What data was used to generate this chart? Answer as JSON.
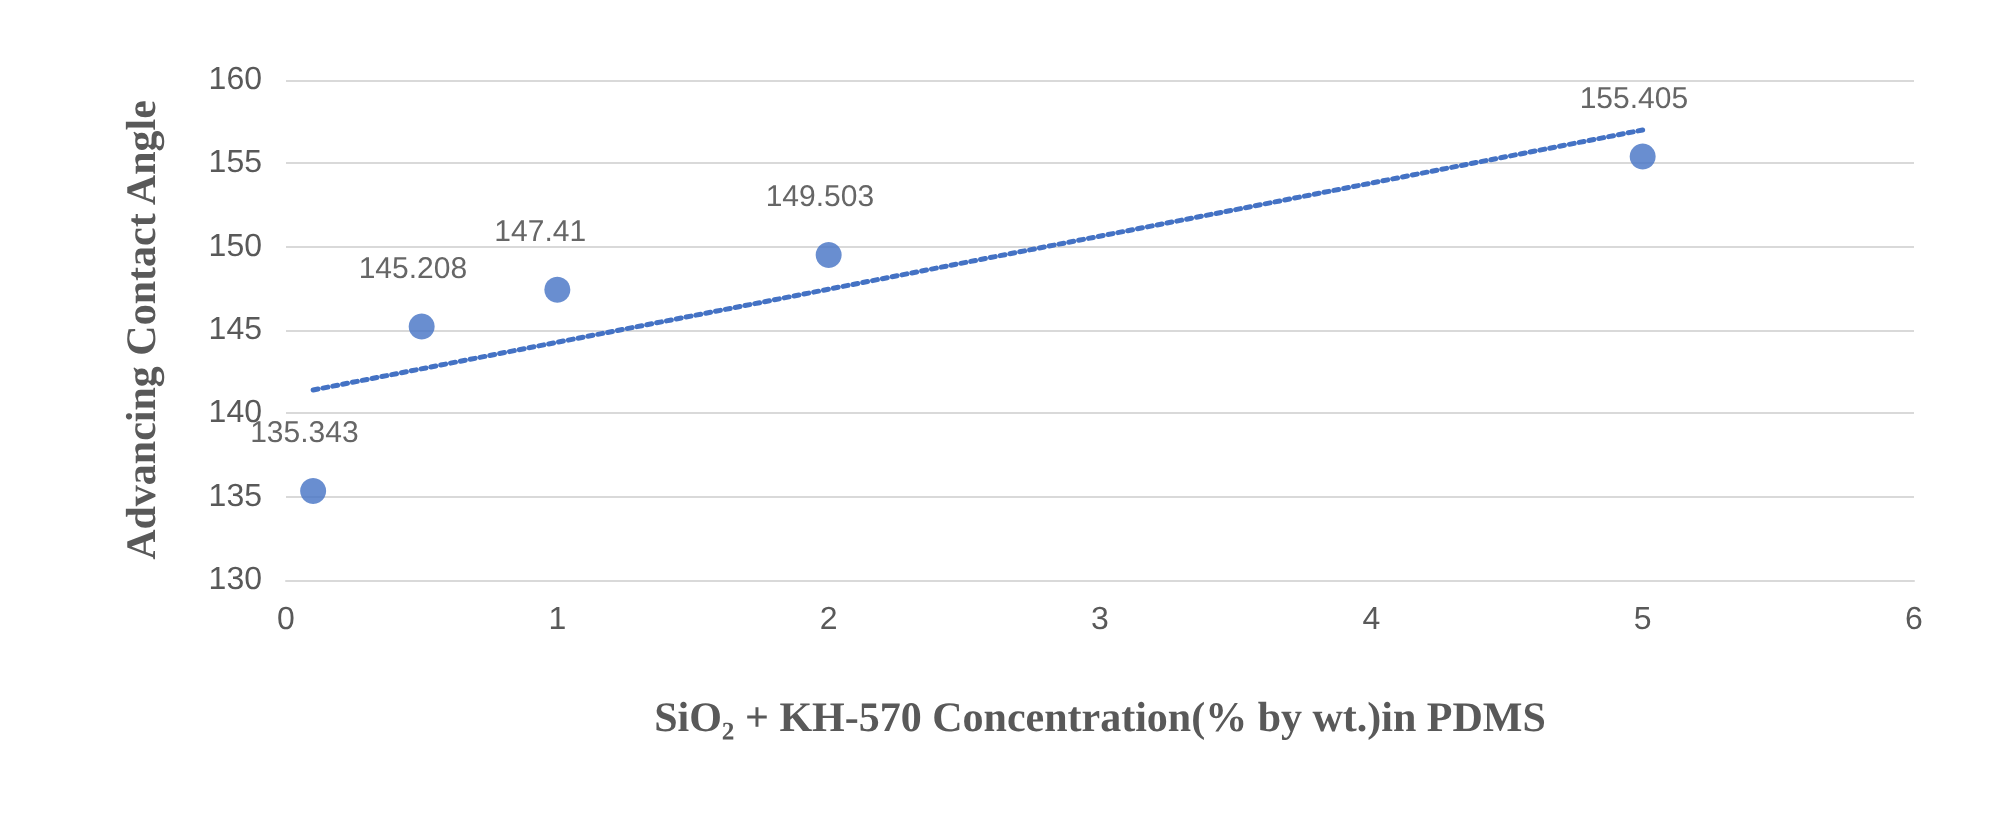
{
  "chart_data": {
    "type": "scatter",
    "xlabel": "SiO₂ + KH-570 Concentration(% by wt.)in PDMS",
    "ylabel": "Advancing Contact Angle",
    "xlim": [
      0,
      6
    ],
    "xticks": [
      0,
      1,
      2,
      3,
      4,
      5,
      6
    ],
    "ylim": [
      130,
      160
    ],
    "yticks": [
      130,
      135,
      140,
      145,
      150,
      155,
      160
    ],
    "grid": "y",
    "series": [
      {
        "color": "#4472c4",
        "marker": "circle",
        "data_labels": true,
        "x": [
          0.1,
          0.5,
          1,
          2,
          5
        ],
        "values": [
          135.343,
          145.208,
          147.41,
          149.503,
          155.405
        ]
      },
      {
        "type": "line",
        "color": "#4472c4",
        "line_style": "dotted",
        "marker": "none",
        "x": [
          0.1,
          5
        ],
        "values": [
          141.4,
          157.0
        ]
      }
    ]
  }
}
